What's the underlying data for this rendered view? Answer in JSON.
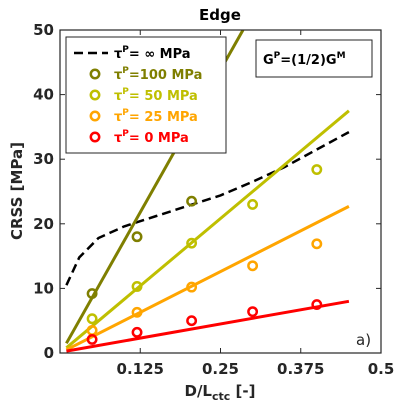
{
  "chart_data": {
    "type": "scatter",
    "title": "Edge",
    "xlabel": {
      "main": "D/L",
      "sub": "ctc",
      "tail": " [-]"
    },
    "ylabel": "CRSS [MPa]",
    "xlim": [
      0,
      0.5
    ],
    "ylim": [
      0,
      50
    ],
    "xticks": [
      0.125,
      0.25,
      0.375,
      0.5
    ],
    "xtick_labels": [
      "0.125",
      "0.25",
      "0.375",
      "0.5"
    ],
    "yticks": [
      0,
      10,
      20,
      30,
      40,
      50
    ],
    "ytick_labels": [
      "0",
      "10",
      "20",
      "30",
      "40",
      "50"
    ],
    "grid": false,
    "legend_position": "top-left",
    "panel_label": "a)",
    "annotation": {
      "main": "G",
      "sup": "P",
      "rest": "=(1/2)G",
      "sup2": "M"
    },
    "series": [
      {
        "legend": {
          "prefix": "τ",
          "sup": "P",
          "text": "=  ∞ MPa"
        },
        "color": "#000000",
        "style": "dashed",
        "curve": [
          [
            0.01,
            10.5
          ],
          [
            0.03,
            14.8
          ],
          [
            0.06,
            17.8
          ],
          [
            0.1,
            19.6
          ],
          [
            0.15,
            21.2
          ],
          [
            0.2,
            22.8
          ],
          [
            0.25,
            24.4
          ],
          [
            0.3,
            26.5
          ],
          [
            0.35,
            28.8
          ],
          [
            0.4,
            31.5
          ],
          [
            0.45,
            34.2
          ]
        ],
        "points": []
      },
      {
        "legend": {
          "prefix": "τ",
          "sup": "P",
          "text": "=100 MPa"
        },
        "color": "#7f7f00",
        "style": "solid",
        "fit": [
          [
            0.01,
            1.5
          ],
          [
            0.285,
            50
          ]
        ],
        "points": [
          [
            0.05,
            9.2
          ],
          [
            0.12,
            18
          ],
          [
            0.205,
            23.5
          ]
        ]
      },
      {
        "legend": {
          "prefix": "τ",
          "sup": "P",
          "text": "=  50 MPa"
        },
        "color": "#bfbf00",
        "style": "solid",
        "fit": [
          [
            0.01,
            0.8
          ],
          [
            0.45,
            37.5
          ]
        ],
        "points": [
          [
            0.05,
            5.3
          ],
          [
            0.12,
            10.3
          ],
          [
            0.205,
            17
          ],
          [
            0.3,
            23
          ],
          [
            0.4,
            28.4
          ]
        ]
      },
      {
        "legend": {
          "prefix": "τ",
          "sup": "P",
          "text": "=  25 MPa"
        },
        "color": "#ffa500",
        "style": "solid",
        "fit": [
          [
            0.01,
            0.5
          ],
          [
            0.45,
            22.7
          ]
        ],
        "points": [
          [
            0.05,
            3.5
          ],
          [
            0.12,
            6.3
          ],
          [
            0.205,
            10.2
          ],
          [
            0.3,
            13.5
          ],
          [
            0.4,
            16.9
          ]
        ]
      },
      {
        "legend": {
          "prefix": "τ",
          "sup": "P",
          "text": "=    0 MPa"
        },
        "color": "#ff0000",
        "style": "solid",
        "fit": [
          [
            0.01,
            0.3
          ],
          [
            0.45,
            8
          ]
        ],
        "points": [
          [
            0.05,
            2.1
          ],
          [
            0.12,
            3.2
          ],
          [
            0.205,
            5
          ],
          [
            0.3,
            6.4
          ],
          [
            0.4,
            7.5
          ]
        ]
      }
    ]
  }
}
